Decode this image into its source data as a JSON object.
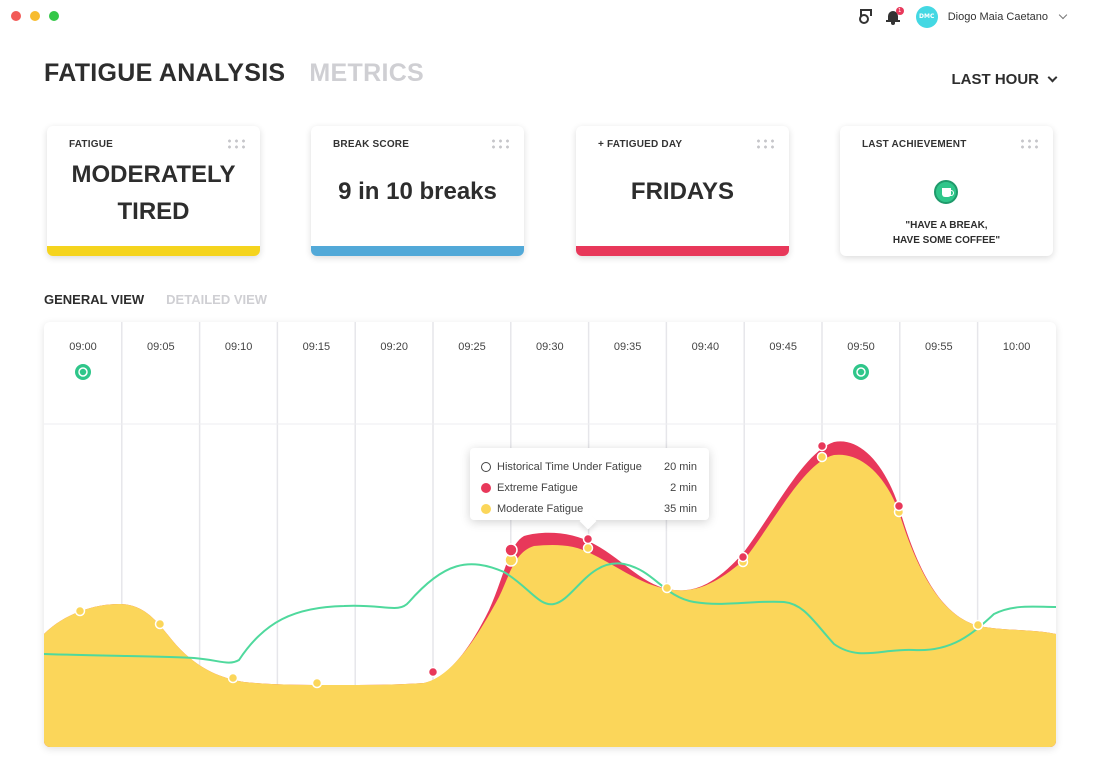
{
  "window": {
    "controls": [
      "close",
      "minimize",
      "zoom"
    ]
  },
  "header": {
    "user_name": "Diogo Maia Caetano",
    "avatar_initials": "DMC",
    "notification_count": "1",
    "icons": [
      "medal-icon",
      "bell-icon",
      "chevron-down-icon"
    ]
  },
  "title_tabs": [
    {
      "label": "FATIGUE ANALYSIS",
      "active": true
    },
    {
      "label": "METRICS",
      "active": false
    }
  ],
  "range": {
    "label": "LAST HOUR"
  },
  "cards": [
    {
      "label": "FATIGUE",
      "value_line1": "MODERATELY",
      "value_line2": "TIRED",
      "bar_color": "#f5d41e"
    },
    {
      "label": "BREAK SCORE",
      "value": "9 in 10 breaks",
      "bar_color": "#52a9d8"
    },
    {
      "label": "+ FATIGUED DAY",
      "value": "FRIDAYS",
      "bar_color": "#e8385a"
    },
    {
      "label": "LAST ACHIEVEMENT",
      "quote_line1": "\"HAVE A BREAK,",
      "quote_line2": "HAVE SOME COFFEE\"",
      "icon": "coffee-cup-icon"
    }
  ],
  "view_tabs": [
    {
      "label": "GENERAL VIEW",
      "active": true
    },
    {
      "label": "DETAILED VIEW",
      "active": false
    }
  ],
  "colors": {
    "moderate": "#fbd65a",
    "extreme": "#e8385a",
    "trend": "#4fd99d",
    "break_marker": "#2fc68a",
    "grid": "#e6e6ea"
  },
  "chart_data": {
    "type": "area",
    "x": [
      "09:00",
      "09:05",
      "09:10",
      "09:15",
      "09:20",
      "09:25",
      "09:30",
      "09:35",
      "09:40",
      "09:45",
      "09:50",
      "09:55",
      "10:00"
    ],
    "break_markers": [
      "09:00",
      "09:50"
    ],
    "tooltip": {
      "rows": [
        {
          "label": "Historical Time Under Fatigue",
          "value": "20 min"
        },
        {
          "label": "Extreme Fatigue",
          "value": "2 min"
        },
        {
          "label": "Moderate Fatigue",
          "value": "35 min"
        }
      ]
    }
  }
}
